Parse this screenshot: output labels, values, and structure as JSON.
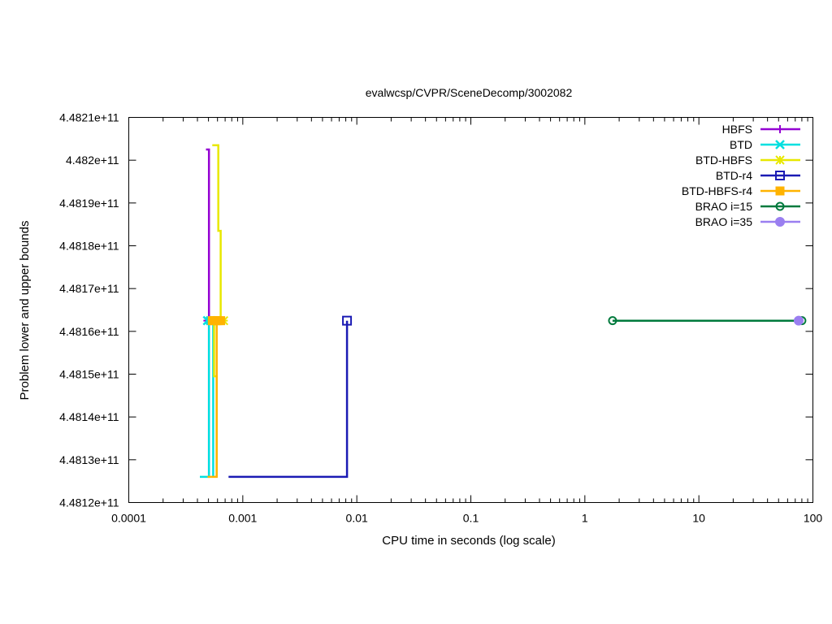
{
  "chart_data": {
    "type": "line",
    "title": "evalwcsp/CVPR/SceneDecomp/3002082",
    "xlabel": "CPU time in seconds (log scale)",
    "ylabel": "Problem lower and upper bounds",
    "x_scale": "log",
    "xlim": [
      0.0001,
      100
    ],
    "ylim": [
      448120000000,
      448210000000
    ],
    "x_ticks": [
      {
        "value": 0.0001,
        "label": "0.0001"
      },
      {
        "value": 0.001,
        "label": "0.001"
      },
      {
        "value": 0.01,
        "label": "0.01"
      },
      {
        "value": 0.1,
        "label": "0.1"
      },
      {
        "value": 1,
        "label": "1"
      },
      {
        "value": 10,
        "label": "10"
      },
      {
        "value": 100,
        "label": "100"
      }
    ],
    "y_ticks": [
      {
        "value": 448120000000,
        "label": "4.4812e+11"
      },
      {
        "value": 448130000000,
        "label": "4.4813e+11"
      },
      {
        "value": 448140000000,
        "label": "4.4814e+11"
      },
      {
        "value": 448150000000,
        "label": "4.4815e+11"
      },
      {
        "value": 448160000000,
        "label": "4.4816e+11"
      },
      {
        "value": 448170000000,
        "label": "4.4817e+11"
      },
      {
        "value": 448180000000,
        "label": "4.4818e+11"
      },
      {
        "value": 448190000000,
        "label": "4.4819e+11"
      },
      {
        "value": 448200000000,
        "label": "4.482e+11"
      },
      {
        "value": 448210000000,
        "label": "4.4821e+11"
      }
    ],
    "grid": false,
    "legend_position": "top-right",
    "series": [
      {
        "name": "HBFS",
        "color": "#9400d3",
        "marker": "plus",
        "lines": [
          [
            [
              0.000475,
              448202500000
            ],
            [
              0.000505,
              448202500000
            ],
            [
              0.000505,
              448126000000
            ]
          ],
          [
            [
              0.000475,
              448162500000
            ],
            [
              0.000505,
              448162500000
            ]
          ]
        ],
        "markers": [
          [
            0.00049,
            448162500000
          ]
        ]
      },
      {
        "name": "BTD",
        "color": "#00e0e0",
        "marker": "x",
        "lines": [
          [
            [
              0.00042,
              448126000000
            ],
            [
              0.000505,
              448126000000
            ],
            [
              0.000505,
              448162500000
            ]
          ],
          [
            [
              0.00049,
              448162500000
            ],
            [
              0.00055,
              448162500000
            ],
            [
              0.00055,
              448126000000
            ]
          ]
        ],
        "markers": [
          [
            0.00049,
            448162500000
          ],
          [
            0.00052,
            448162500000
          ]
        ]
      },
      {
        "name": "BTD-HBFS",
        "color": "#e8e800",
        "marker": "star",
        "lines": [
          [
            [
              0.00054,
              448203500000
            ],
            [
              0.00061,
              448203500000
            ],
            [
              0.00061,
              448183500000
            ],
            [
              0.00064,
              448183500000
            ],
            [
              0.00064,
              448162500000
            ]
          ],
          [
            [
              0.00054,
              448162500000
            ],
            [
              0.00068,
              448162500000
            ]
          ],
          [
            [
              0.00056,
              448162500000
            ],
            [
              0.00056,
              448149500000
            ],
            [
              0.00059,
              448149500000
            ],
            [
              0.00059,
              448126000000
            ]
          ]
        ],
        "markers": [
          [
            0.00055,
            448162500000
          ],
          [
            0.00058,
            448162500000
          ],
          [
            0.00062,
            448162500000
          ],
          [
            0.00068,
            448162500000
          ]
        ]
      },
      {
        "name": "BTD-r4",
        "color": "#1b1bb4",
        "marker": "open-square",
        "lines": [
          [
            [
              0.00075,
              448126000000
            ],
            [
              0.0082,
              448126000000
            ],
            [
              0.0082,
              448162500000
            ]
          ]
        ],
        "markers": [
          [
            0.0082,
            448162500000
          ]
        ]
      },
      {
        "name": "BTD-HBFS-r4",
        "color": "#ffb300",
        "marker": "filled-square",
        "lines": [
          [
            [
              0.00049,
              448126000000
            ],
            [
              0.00059,
              448126000000
            ],
            [
              0.00059,
              448162500000
            ]
          ],
          [
            [
              0.00052,
              448162500000
            ],
            [
              0.00068,
              448162500000
            ]
          ]
        ],
        "markers": [
          [
            0.00054,
            448162500000
          ],
          [
            0.00057,
            448162500000
          ],
          [
            0.0006,
            448162500000
          ],
          [
            0.00064,
            448162500000
          ]
        ]
      },
      {
        "name": "BRAO i=15",
        "color": "#007a3d",
        "marker": "open-circle",
        "lines": [
          [
            [
              1.75,
              448162500000
            ],
            [
              80,
              448162500000
            ]
          ]
        ],
        "markers": [
          [
            1.75,
            448162500000
          ],
          [
            80,
            448162500000
          ]
        ]
      },
      {
        "name": "BRAO i=35",
        "color": "#9a7ff0",
        "marker": "filled-circle",
        "lines": [
          [
            [
              74,
              448162500000
            ],
            [
              78,
              448162500000
            ]
          ]
        ],
        "markers": [
          [
            75,
            448162500000
          ]
        ]
      }
    ]
  }
}
